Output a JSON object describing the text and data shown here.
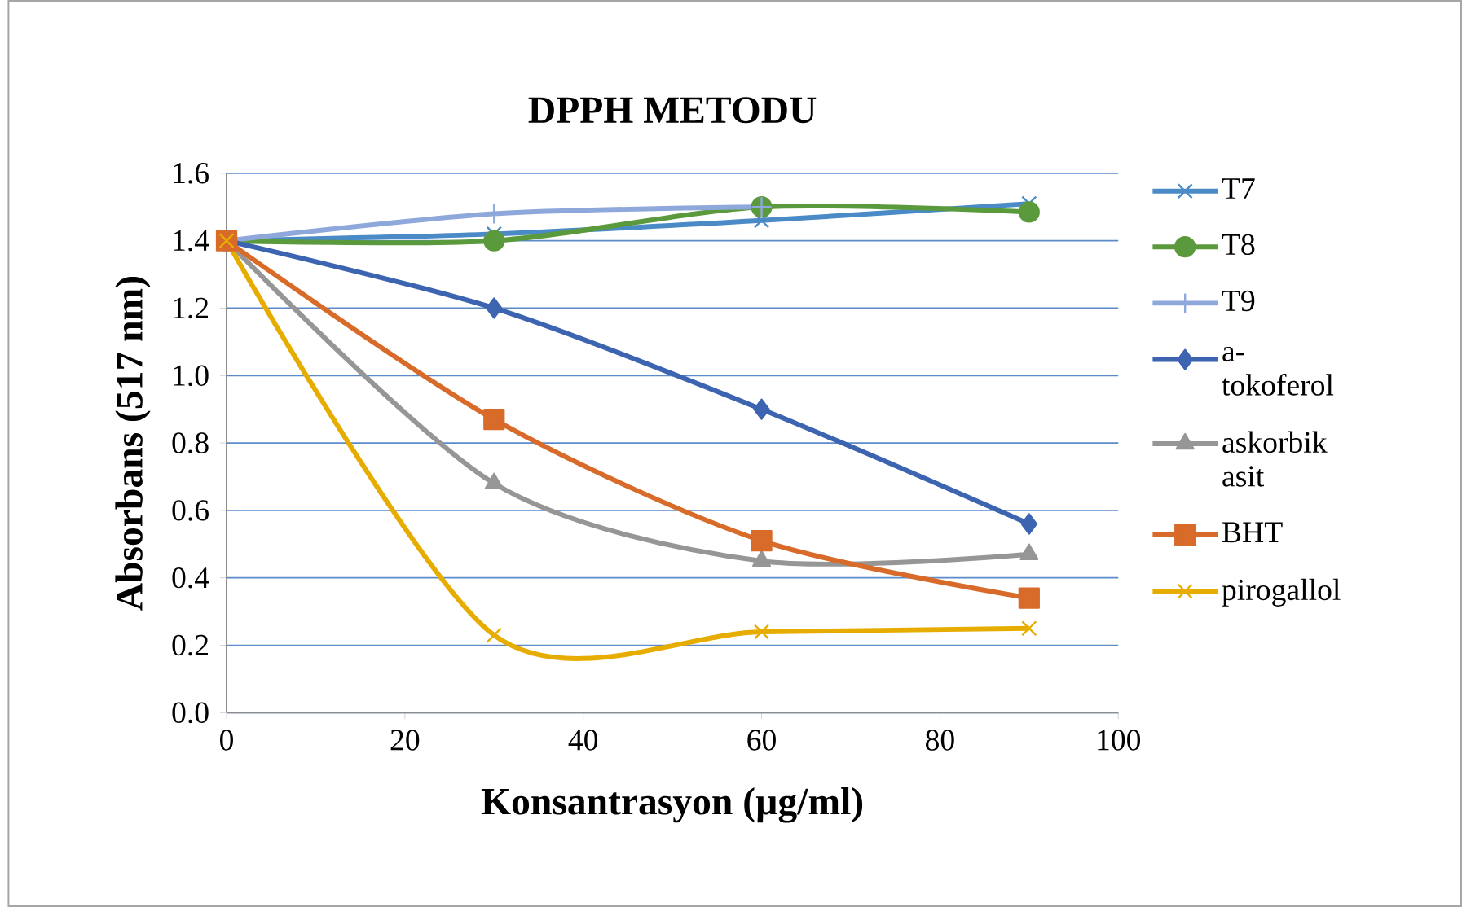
{
  "chart_data": {
    "type": "line",
    "title": "DPPH METODU",
    "xlabel": "Konsantrasyon (µg/ml)",
    "ylabel": "Absorbans (517 nm)",
    "x": [
      0,
      30,
      60,
      90
    ],
    "series": [
      {
        "name": "T7",
        "color": "#4a8ac6",
        "marker": "cross",
        "values": [
          1.4,
          1.42,
          1.46,
          1.51
        ]
      },
      {
        "name": "T8",
        "color": "#5b9a3c",
        "marker": "circle",
        "values": [
          1.4,
          1.4,
          1.5,
          1.485
        ]
      },
      {
        "name": "T9",
        "color": "#8fa8dc",
        "marker": "plus",
        "values": [
          1.4,
          1.48,
          1.5,
          null
        ]
      },
      {
        "name": "a-tokoferol",
        "color": "#3c64b1",
        "marker": "diamond",
        "values": [
          1.4,
          1.2,
          0.9,
          0.56
        ]
      },
      {
        "name": "askorbik asit",
        "color": "#969696",
        "marker": "triangle",
        "values": [
          1.4,
          0.68,
          0.45,
          0.47
        ]
      },
      {
        "name": "BHT",
        "color": "#d86b2a",
        "marker": "square",
        "values": [
          1.4,
          0.87,
          0.51,
          0.34
        ]
      },
      {
        "name": "pirogallol",
        "color": "#e6ad00",
        "marker": "cross",
        "values": [
          1.4,
          0.23,
          0.24,
          0.25
        ]
      }
    ],
    "xlim": [
      0,
      100
    ],
    "xticks": [
      0,
      20,
      40,
      60,
      80,
      100
    ],
    "ylim": [
      0,
      1.6
    ],
    "yticks": [
      {
        "value": 0,
        "label": "0.0"
      },
      {
        "value": 0.2,
        "label": "0.2"
      },
      {
        "value": 0.4,
        "label": "0.4"
      },
      {
        "value": 0.6,
        "label": "0.6"
      },
      {
        "value": 0.8,
        "label": "0.8"
      },
      {
        "value": 1.0,
        "label": "1.0"
      },
      {
        "value": 1.2,
        "label": "1.2"
      },
      {
        "value": 1.4,
        "label": "1.4"
      },
      {
        "value": 1.6,
        "label": "1.6"
      }
    ],
    "grid": "y",
    "legend": "right",
    "line_style": "solid"
  }
}
